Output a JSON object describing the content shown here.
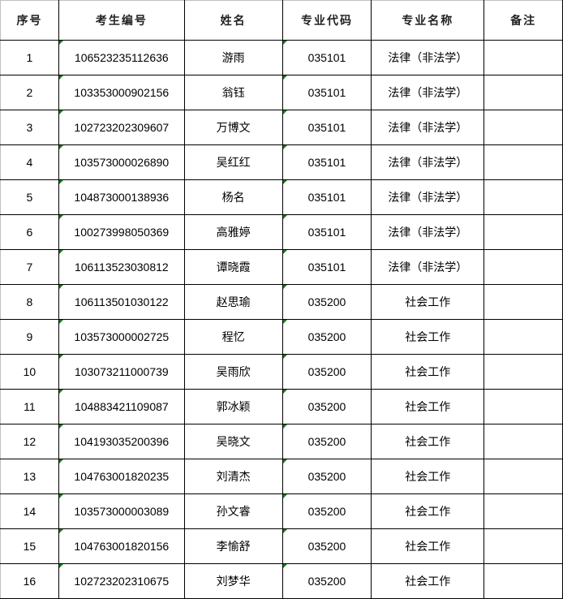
{
  "headers": [
    "序号",
    "考生编号",
    "姓名",
    "专业代码",
    "专业名称",
    "备注"
  ],
  "rows": [
    {
      "no": "1",
      "id": "106523235112636",
      "name": "游雨",
      "code": "035101",
      "major": "法律（非法学）",
      "note": ""
    },
    {
      "no": "2",
      "id": "103353000902156",
      "name": "翁钰",
      "code": "035101",
      "major": "法律（非法学）",
      "note": ""
    },
    {
      "no": "3",
      "id": "102723202309607",
      "name": "万博文",
      "code": "035101",
      "major": "法律（非法学）",
      "note": ""
    },
    {
      "no": "4",
      "id": "103573000026890",
      "name": "吴红红",
      "code": "035101",
      "major": "法律（非法学）",
      "note": ""
    },
    {
      "no": "5",
      "id": "104873000138936",
      "name": "杨名",
      "code": "035101",
      "major": "法律（非法学）",
      "note": ""
    },
    {
      "no": "6",
      "id": "100273998050369",
      "name": "高雅婷",
      "code": "035101",
      "major": "法律（非法学）",
      "note": ""
    },
    {
      "no": "7",
      "id": "106113523030812",
      "name": "谭晓霞",
      "code": "035101",
      "major": "法律（非法学）",
      "note": ""
    },
    {
      "no": "8",
      "id": "106113501030122",
      "name": "赵思瑜",
      "code": "035200",
      "major": "社会工作",
      "note": ""
    },
    {
      "no": "9",
      "id": "103573000002725",
      "name": "程忆",
      "code": "035200",
      "major": "社会工作",
      "note": ""
    },
    {
      "no": "10",
      "id": "103073211000739",
      "name": "吴雨欣",
      "code": "035200",
      "major": "社会工作",
      "note": ""
    },
    {
      "no": "11",
      "id": "104883421109087",
      "name": "郭冰颖",
      "code": "035200",
      "major": "社会工作",
      "note": ""
    },
    {
      "no": "12",
      "id": "104193035200396",
      "name": "吴晓文",
      "code": "035200",
      "major": "社会工作",
      "note": ""
    },
    {
      "no": "13",
      "id": "104763001820235",
      "name": "刘清杰",
      "code": "035200",
      "major": "社会工作",
      "note": ""
    },
    {
      "no": "14",
      "id": "103573000003089",
      "name": "孙文睿",
      "code": "035200",
      "major": "社会工作",
      "note": ""
    },
    {
      "no": "15",
      "id": "104763001820156",
      "name": "李愉舒",
      "code": "035200",
      "major": "社会工作",
      "note": ""
    },
    {
      "no": "16",
      "id": "102723202310675",
      "name": "刘梦华",
      "code": "035200",
      "major": "社会工作",
      "note": ""
    }
  ],
  "colors": {
    "border": "#000000",
    "text_marker": "#1a7a1a"
  }
}
